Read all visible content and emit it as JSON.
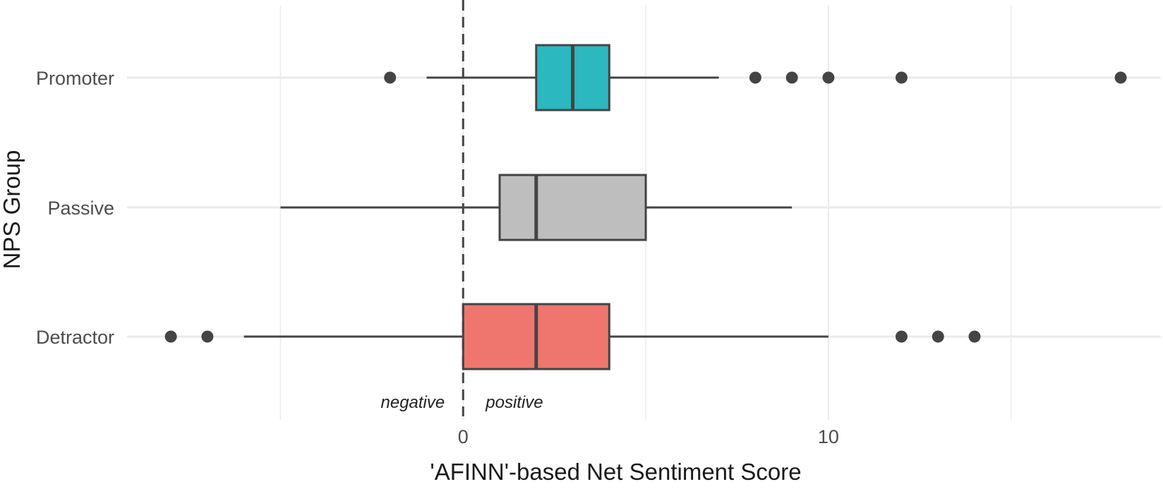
{
  "chart_data": {
    "type": "boxplot",
    "orientation": "horizontal",
    "xlabel": "'AFINN'-based Net Sentiment Score",
    "ylabel": "NPS Group",
    "xlim": [
      -9.2,
      19.1
    ],
    "x_ticks": [
      0,
      10
    ],
    "x_minor_grid": [
      -5,
      5,
      15
    ],
    "grid": true,
    "reference_line": {
      "x": 0,
      "style": "dashed"
    },
    "annotations": [
      {
        "text": "negative",
        "side": "left"
      },
      {
        "text": "positive",
        "side": "right"
      }
    ],
    "categories": [
      "Promoter",
      "Passive",
      "Detractor"
    ],
    "series": [
      {
        "category": "Promoter",
        "whisker_low": -1,
        "q1": 2,
        "median": 3,
        "q3": 4,
        "whisker_high": 7,
        "outliers": [
          -2,
          8,
          9,
          10,
          12,
          18
        ],
        "color": "#2BB8BE"
      },
      {
        "category": "Passive",
        "whisker_low": -5,
        "q1": 1,
        "median": 2,
        "q3": 5,
        "whisker_high": 9,
        "outliers": [],
        "color": "#BEBEBF"
      },
      {
        "category": "Detractor",
        "whisker_low": -6,
        "q1": 0,
        "median": 2,
        "q3": 4,
        "whisker_high": 10,
        "outliers": [
          -8,
          -7,
          12,
          13,
          14
        ],
        "color": "#EF766F"
      }
    ]
  }
}
